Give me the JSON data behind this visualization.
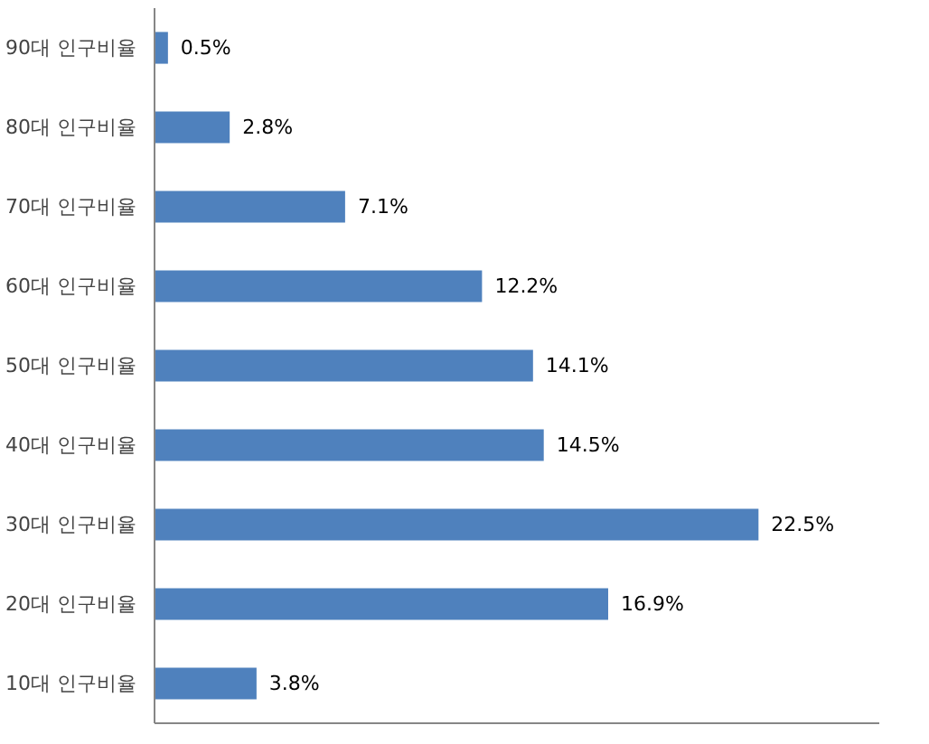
{
  "chart_data": {
    "type": "bar",
    "orientation": "horizontal",
    "categories": [
      "90대 인구비율",
      "80대 인구비율",
      "70대 인구비율",
      "60대 인구비율",
      "50대 인구비율",
      "40대 인구비율",
      "30대 인구비율",
      "20대 인구비율",
      "10대 인구비율"
    ],
    "values": [
      0.5,
      2.8,
      7.1,
      12.2,
      14.1,
      14.5,
      22.5,
      16.9,
      3.8
    ],
    "value_labels": [
      "0.5%",
      "2.8%",
      "7.1%",
      "12.2%",
      "14.1%",
      "14.5%",
      "22.5%",
      "16.9%",
      "3.8%"
    ],
    "color": "#4f81bd",
    "tick_labels": "y",
    "grid": false
  }
}
